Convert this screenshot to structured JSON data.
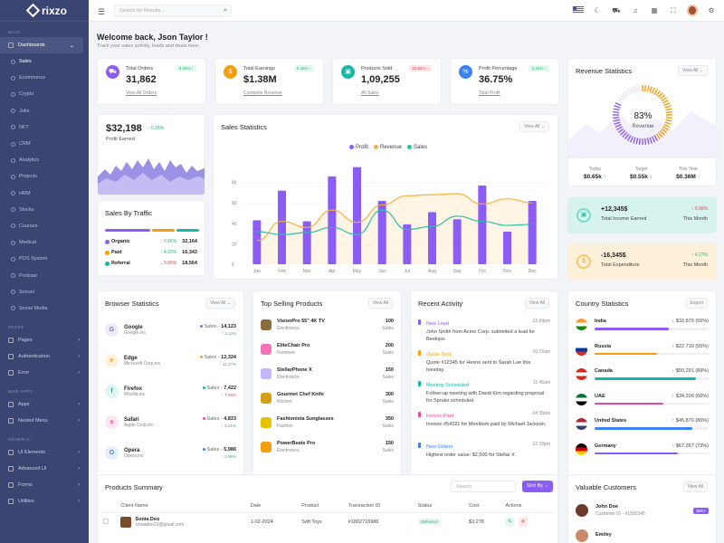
{
  "brand": "rixzo",
  "sidebar": {
    "main_label": "MAIN",
    "dashboards": "Dashboards",
    "subs": [
      "Sales",
      "Ecommerce",
      "Crypto",
      "Jobs",
      "NFT",
      "CRM",
      "Analytics",
      "Projects",
      "HRM",
      "Stocks",
      "Courses",
      "Medical",
      "POS System",
      "Podcast",
      "School",
      "Social Media"
    ],
    "pages_label": "PAGES",
    "pages": [
      "Pages",
      "Authentication",
      "Error"
    ],
    "web_label": "WEB APPS",
    "web": [
      "Apps",
      "Nested Menu"
    ],
    "general_label": "GENERAL",
    "general": [
      "UI Elements",
      "Advanced UI",
      "Forms",
      "Utilities"
    ]
  },
  "topbar": {
    "search_placeholder": "Search for Results..."
  },
  "welcome": {
    "title": "Welcome back, Json Taylor !",
    "subtitle": "Track your sales activity, leads and deals here."
  },
  "stats": [
    {
      "label": "Total Orders",
      "value": "31,862",
      "badge": "0.25% ↑",
      "link": "View All Orders",
      "color": "#8b5cf6",
      "dir": "up",
      "icon": "cart-icon",
      "glyph": "⛟"
    },
    {
      "label": "Total Earnings",
      "value": "$1.38M",
      "badge": "0.46% ↑",
      "link": "Complete Revenue",
      "color": "#f59e0b",
      "dir": "up",
      "icon": "dollar-icon",
      "glyph": "$"
    },
    {
      "label": "Products Sold",
      "value": "1,09,255",
      "badge": "12.56% ↓",
      "link": "All Sales",
      "color": "#14b8a6",
      "dir": "down",
      "icon": "box-icon",
      "glyph": "▣"
    },
    {
      "label": "Profit Percentage",
      "value": "36.75%",
      "badge": "2.15% ↑",
      "link": "Total Profit",
      "color": "#3b82f6",
      "dir": "up",
      "icon": "percent-icon",
      "glyph": "%"
    }
  ],
  "profit": {
    "value": "$32,198",
    "change": "↑ 0.25%",
    "label": "Profit Earned"
  },
  "traffic": {
    "title": "Sales By Traffic",
    "rows": [
      {
        "name": "Organic",
        "change": "↑ 0.56%",
        "value": "32,164",
        "color": "#8b5cf6",
        "dir": "up"
      },
      {
        "name": "Paid",
        "change": "↑ 4.22%",
        "value": "16,343",
        "color": "#f59e0b",
        "dir": "up"
      },
      {
        "name": "Referral",
        "change": "↓ 9.66%",
        "value": "18,564",
        "color": "#14b8a6",
        "dir": "down"
      }
    ]
  },
  "sales_stats": {
    "title": "Sales Statistics",
    "view_all": "View All ⌄"
  },
  "chart_data": {
    "type": "bar",
    "categories": [
      "Jan",
      "Feb",
      "Mar",
      "Apr",
      "May",
      "Jun",
      "Jul",
      "Aug",
      "Sep",
      "Oct",
      "Nov",
      "Dec"
    ],
    "ylim": [
      0,
      100
    ],
    "yticks": [
      0,
      20,
      40,
      60,
      80
    ],
    "series": [
      {
        "name": "Profit",
        "type": "bar",
        "color": "#8b5cf6",
        "values": [
          43,
          72,
          42,
          86,
          95,
          62,
          39,
          51,
          44,
          77,
          32,
          62
        ]
      },
      {
        "name": "Revenue",
        "type": "line",
        "color": "#f5b041",
        "values": [
          23,
          42,
          36,
          53,
          41,
          58,
          67,
          68,
          69,
          59,
          64,
          60
        ]
      },
      {
        "name": "Sales",
        "type": "line",
        "color": "#2cc0a4",
        "values": [
          32,
          29,
          31,
          36,
          29,
          53,
          34,
          37,
          47,
          42,
          38,
          39
        ]
      }
    ]
  },
  "revenue": {
    "title": "Revenue Statistics",
    "view_all": "View All ⌄",
    "percent": "83%",
    "label": "Revenue",
    "items": [
      {
        "label": "Today",
        "value": "$0.65k",
        "arrow": "↑",
        "dir": "up"
      },
      {
        "label": "Target",
        "value": "$0.55k",
        "arrow": "↓",
        "dir": "down"
      },
      {
        "label": "This Year",
        "value": "$0.36M",
        "arrow": "↑",
        "dir": "up"
      }
    ]
  },
  "income": {
    "value": "+12,345$",
    "label": "Total Income Earned",
    "change": "↓ 0.96%",
    "period": "This Month"
  },
  "expenditure": {
    "value": "-16,345$",
    "label": "Total Expenditure",
    "change": "↑ 4.27%",
    "period": "This Month"
  },
  "browser": {
    "title": "Browser Statistics",
    "view_all": "View All ⌄",
    "rows": [
      {
        "name": "Google",
        "sub": "Google.inc",
        "sales": "Sales",
        "num": "14,123",
        "chg": "↑ 3.12%",
        "dir": "up",
        "color": "#8b5cf6",
        "glyph": "G"
      },
      {
        "name": "Edge",
        "sub": "Microsoft Corp.inc",
        "sales": "Sales",
        "num": "12,324",
        "chg": "↑ 11.27%",
        "dir": "up",
        "color": "#f59e0b",
        "glyph": "e"
      },
      {
        "name": "Firefox",
        "sub": "Mozilla.inc",
        "sales": "Sales",
        "num": "7,422",
        "chg": "↓ 7.48%",
        "dir": "down",
        "color": "#14b8a6",
        "glyph": "f"
      },
      {
        "name": "Safari",
        "sub": "Apple Corp.inc",
        "sales": "Sales",
        "num": "4,833",
        "chg": "↑ 5.21%",
        "dir": "up",
        "color": "#ec4899",
        "glyph": "s"
      },
      {
        "name": "Opera",
        "sub": "Opera.inc",
        "sales": "Sales",
        "num": "5,986",
        "chg": "↑ 2.96%",
        "dir": "up",
        "color": "#3b82f6",
        "glyph": "O"
      }
    ]
  },
  "top_products": {
    "title": "Top Selling Products",
    "view_all": "View All",
    "rows": [
      {
        "name": "VisionPro 55\" 4K TV",
        "cat": "Electronics",
        "num": "100",
        "unit": "Sales",
        "color": "#8a6d3b"
      },
      {
        "name": "EliteChair Pro",
        "cat": "Furniture",
        "num": "200",
        "unit": "Sales",
        "color": "#f472b6"
      },
      {
        "name": "StellarPhone X",
        "cat": "Electronics",
        "num": "150",
        "unit": "Sales",
        "color": "#c4b5fd"
      },
      {
        "name": "Gourmet Chef Knife",
        "cat": "Kitchen",
        "num": "300",
        "unit": "Sales",
        "color": "#d4a017"
      },
      {
        "name": "Fashionista Sunglasses",
        "cat": "Fashion",
        "num": "350",
        "unit": "Sales",
        "color": "#e5c100"
      },
      {
        "name": "PowerBeats Pro",
        "cat": "Electronics",
        "num": "150",
        "unit": "Sales",
        "color": "#f59e0b"
      }
    ]
  },
  "activity": {
    "title": "Recent Activity",
    "view_all": "View All",
    "rows": [
      {
        "title": "New Lead",
        "time": "12:24pm",
        "text": "John Smith from Acme Corp. submitted a lead for Beekipo.",
        "color": "#8b5cf6"
      },
      {
        "title": "Quote Sent",
        "time": "10:15am",
        "text": "Quote #12345 for Hexno sent to Sarah Lee this tuesday.",
        "color": "#f59e0b"
      },
      {
        "title": "Meeting Scheduled",
        "time": "11:45am",
        "text": "Follow-up meeting with David Kim regarding proposal for Spruko scheduled.",
        "color": "#14b8a6"
      },
      {
        "title": "Invoice Paid",
        "time": "04:35pm",
        "text": "Invoice #54321 for Meelbom paid by Michael Jackson.",
        "color": "#ec4899"
      },
      {
        "title": "New Orders",
        "time": "12:22pm",
        "text": "Highest order value: $2,500 for Stellar X",
        "color": "#3b82f6"
      }
    ]
  },
  "country": {
    "title": "Country Statistics",
    "export": "Export",
    "rows": [
      {
        "name": "India",
        "val": "$32,879 (65%)",
        "arrow": "↓",
        "dir": "down",
        "pct": 65,
        "color": "#8b5cf6",
        "flag": [
          "#ff9933",
          "#ffffff",
          "#138808"
        ]
      },
      {
        "name": "Russia",
        "val": "$22,710 (55%)",
        "arrow": "↑",
        "dir": "up",
        "pct": 55,
        "color": "#f59e0b",
        "flag": [
          "#ffffff",
          "#0039a6",
          "#d52b1e"
        ]
      },
      {
        "name": "Canada",
        "val": "$50,291 (89%)",
        "arrow": "↓",
        "dir": "down",
        "pct": 89,
        "color": "#14b8a6",
        "flag": [
          "#d52b1e",
          "#ffffff",
          "#d52b1e"
        ]
      },
      {
        "name": "UAE",
        "val": "$34,209 (60%)",
        "arrow": "↑",
        "dir": "up",
        "pct": 60,
        "color": "#ec4899",
        "flag": [
          "#00732f",
          "#ffffff",
          "#000000"
        ]
      },
      {
        "name": "United States",
        "val": "$45,870 (86%)",
        "arrow": "↑",
        "dir": "up",
        "pct": 86,
        "color": "#3b82f6",
        "flag": [
          "#b22234",
          "#ffffff",
          "#3c3b6e"
        ]
      },
      {
        "name": "Germany",
        "val": "$67,357 (73%)",
        "arrow": "↑",
        "dir": "up",
        "pct": 73,
        "color": "#8b5cf6",
        "flag": [
          "#000000",
          "#dd0000",
          "#ffce00"
        ]
      }
    ]
  },
  "products_summary": {
    "title": "Products Summary",
    "search_placeholder": "Search",
    "sort": "Sort By ⌄",
    "headers": [
      "",
      "Client Name",
      "Date",
      "Product",
      "Transaction ID",
      "Status",
      "Cost",
      "Actions"
    ],
    "row": {
      "name": "Sonia Deo",
      "email": "soniadeo23@gmail.com",
      "date": "1-02-2024",
      "product": "Soft Toys",
      "txn": "#1802716986",
      "status": "Delivered",
      "cost": "$3,278"
    }
  },
  "customers": {
    "title": "Valuable Customers",
    "view_all": "View All",
    "rows": [
      {
        "name": "John Doe",
        "sub": "Customer ID - #1502345",
        "amount": "$5K+"
      },
      {
        "name": "Emiley",
        "sub": "",
        "amount": ""
      }
    ]
  }
}
